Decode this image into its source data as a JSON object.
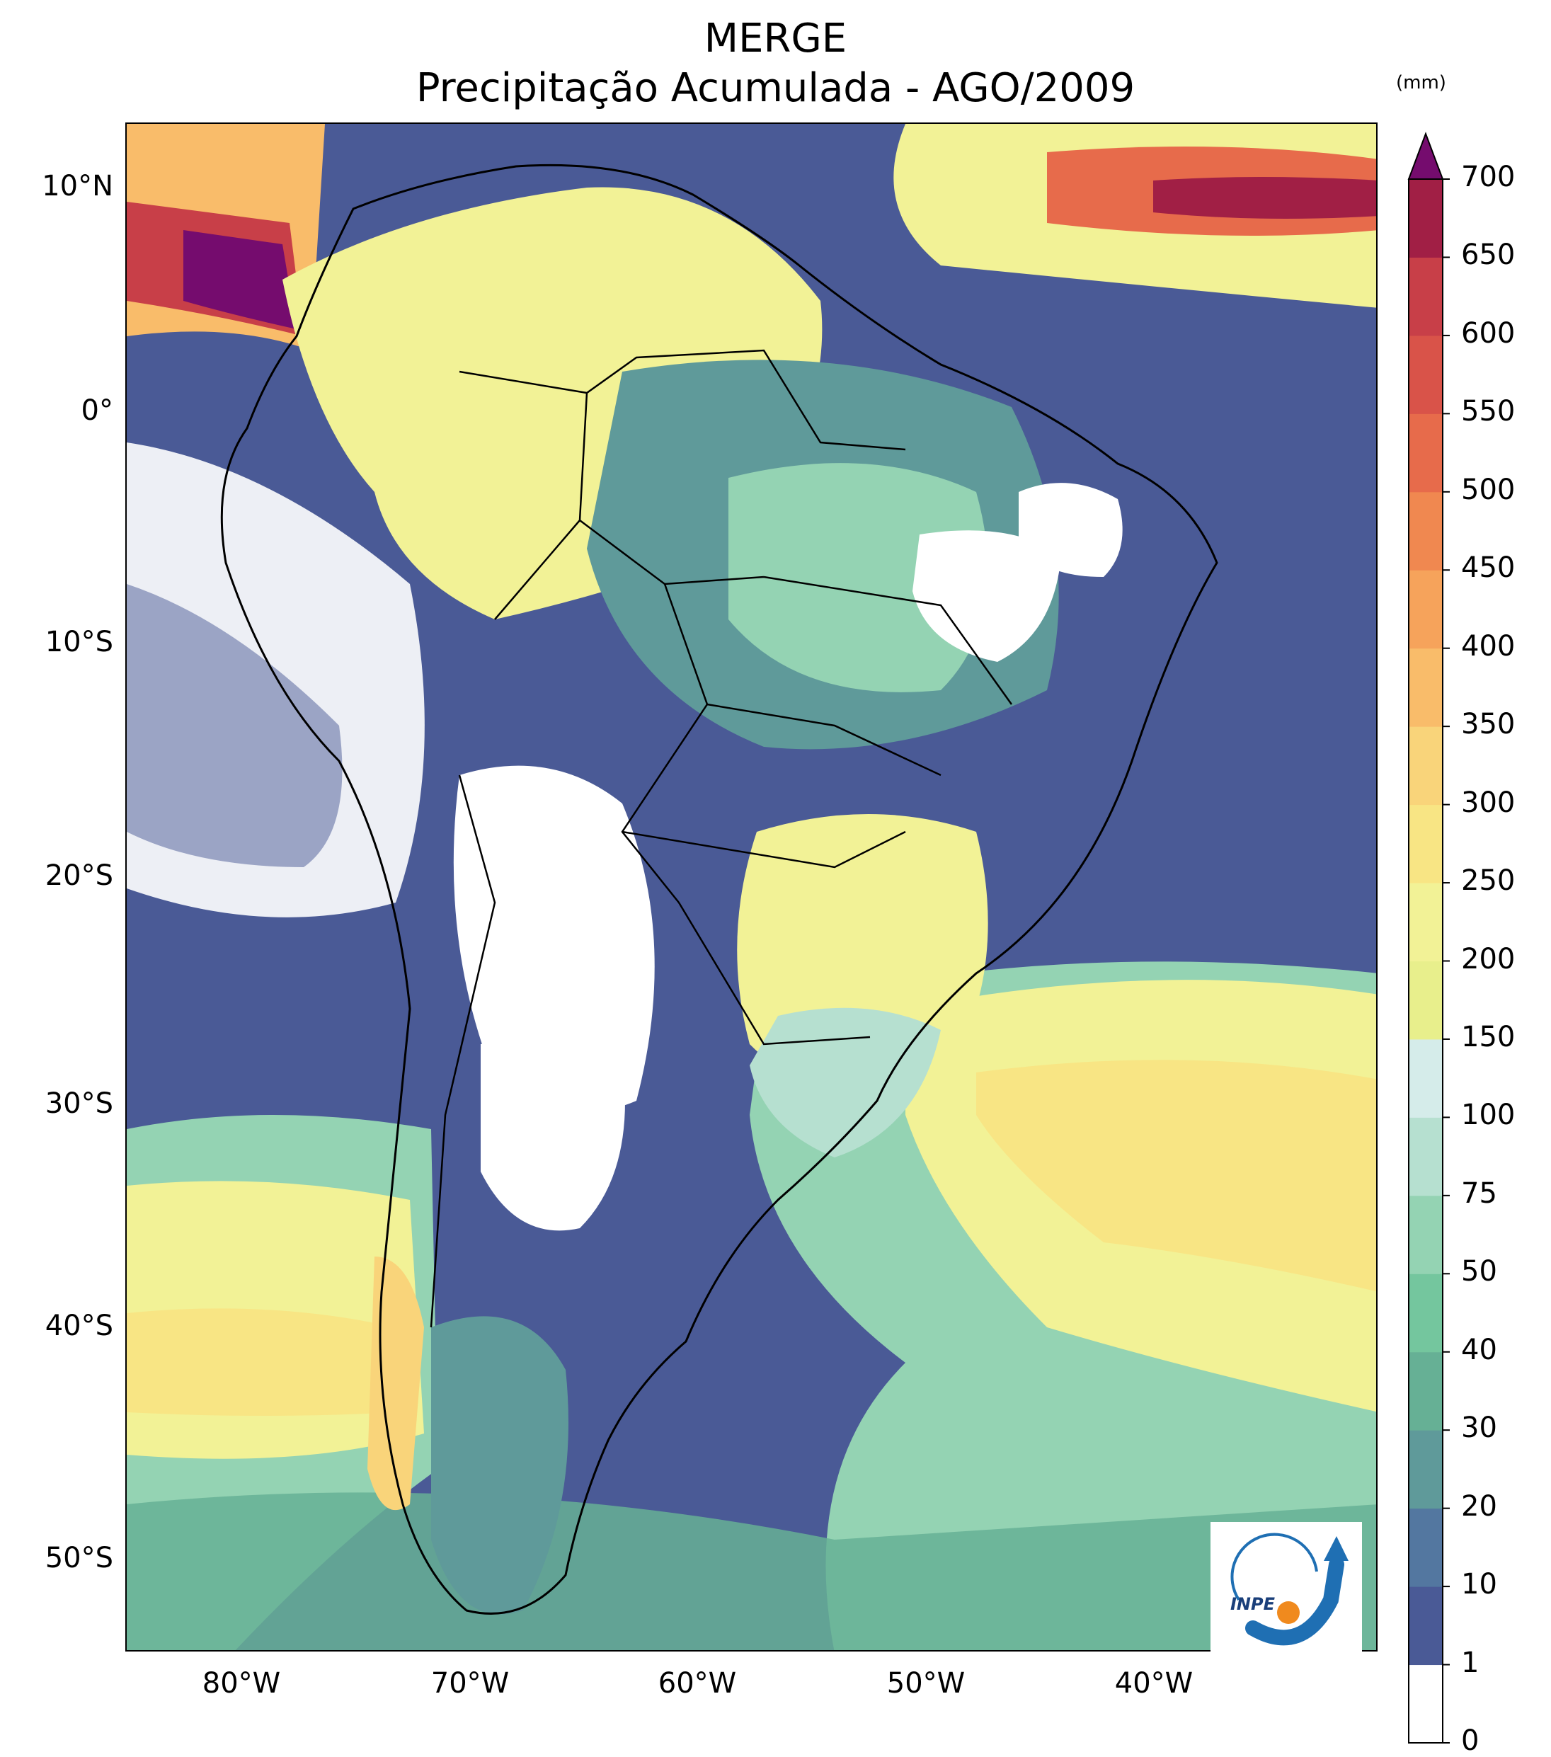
{
  "title": "MERGE",
  "subtitle": "Precipitação Acumulada - AGO/2009",
  "colorbar": {
    "unit": "(mm)",
    "levels": [
      "0",
      "1",
      "10",
      "20",
      "30",
      "40",
      "50",
      "75",
      "100",
      "150",
      "200",
      "250",
      "300",
      "350",
      "400",
      "450",
      "500",
      "550",
      "600",
      "650",
      "700"
    ],
    "colors": [
      "#ffffff",
      "#4a5a96",
      "#5377a0",
      "#5f9a9a",
      "#66b095",
      "#74c69e",
      "#94d3b3",
      "#b6e0d0",
      "#d5ecea",
      "#e8ef8c",
      "#f2f296",
      "#f8e584",
      "#f9d47a",
      "#f9bc6a",
      "#f6a35b",
      "#f08850",
      "#e76b4b",
      "#d95349",
      "#c83f48",
      "#a11f45",
      "#750c6e"
    ],
    "extend_top_color": "#750c6e"
  },
  "axes": {
    "lat_labels": [
      "10°N",
      "0°",
      "10°S",
      "20°S",
      "30°S",
      "40°S",
      "50°S"
    ],
    "lon_labels": [
      "80°W",
      "70°W",
      "60°W",
      "50°W",
      "40°W"
    ]
  },
  "logo": {
    "text": "INPE"
  }
}
